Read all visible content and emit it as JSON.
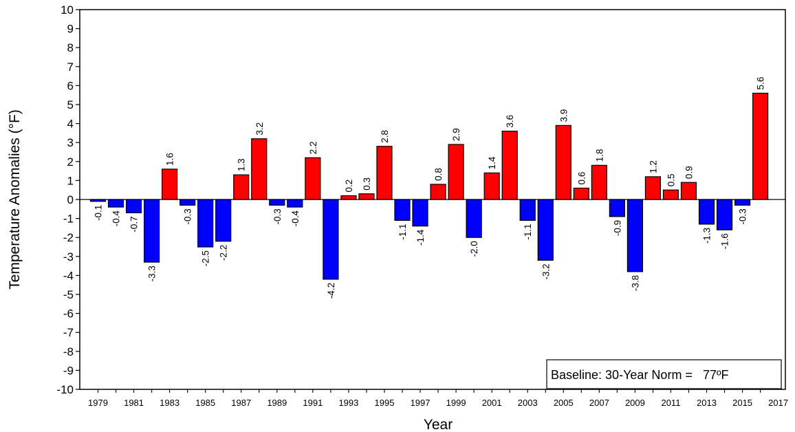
{
  "chart_data": {
    "type": "bar",
    "title": "",
    "xlabel": "Year",
    "ylabel": "Temperature Anomalies (°F)",
    "ylim": [
      -10,
      10
    ],
    "yticks": [
      "10",
      "9",
      "8",
      "7",
      "6",
      "5",
      "4",
      "3",
      "2",
      "1",
      "0",
      "-1",
      "-2",
      "-3",
      "-4",
      "-5",
      "-6",
      "-7",
      "-8",
      "-9",
      "-10"
    ],
    "xtick_labels": [
      "1979",
      "1981",
      "1983",
      "1985",
      "1987",
      "1989",
      "1991",
      "1993",
      "1995",
      "1997",
      "1999",
      "2001",
      "2003",
      "2005",
      "2007",
      "2009",
      "2011",
      "2013",
      "2015",
      "2017"
    ],
    "categories": [
      1979,
      1980,
      1981,
      1982,
      1983,
      1984,
      1985,
      1986,
      1987,
      1988,
      1989,
      1990,
      1991,
      1992,
      1993,
      1994,
      1995,
      1996,
      1997,
      1998,
      1999,
      2000,
      2001,
      2002,
      2003,
      2004,
      2005,
      2006,
      2007,
      2008,
      2009,
      2010,
      2011,
      2012,
      2013,
      2014,
      2015,
      2016
    ],
    "values": [
      -0.1,
      -0.4,
      -0.7,
      -3.3,
      1.6,
      -0.3,
      -2.5,
      -2.2,
      1.3,
      3.2,
      -0.3,
      -0.4,
      2.2,
      -4.2,
      0.2,
      0.3,
      2.8,
      -1.1,
      -1.4,
      0.8,
      2.9,
      -2.0,
      1.4,
      3.6,
      -1.1,
      -3.2,
      3.9,
      0.6,
      1.8,
      -0.9,
      -3.8,
      1.2,
      0.5,
      0.9,
      -1.3,
      -1.6,
      -0.3,
      5.6
    ],
    "value_labels": [
      "-0.1",
      "-0.4",
      "-0.7",
      "-3.3",
      "1.6",
      "-0.3",
      "-2.5",
      "-2.2",
      "1.3",
      "3.2",
      "-0.3",
      "-0.4",
      "2.2",
      "-4.2",
      "0.2",
      "0.3",
      "2.8",
      "-1.1",
      "-1.4",
      "0.8",
      "2.9",
      "-2.0",
      "1.4",
      "3.6",
      "-1.1",
      "-3.2",
      "3.9",
      "0.6",
      "1.8",
      "-0.9",
      "-3.8",
      "1.2",
      "0.5",
      "0.9",
      "-1.3",
      "-1.6",
      "-0.3",
      "5.6"
    ],
    "colors": {
      "positive": "#ff0000",
      "negative": "#0000ff",
      "outline": "#000000"
    },
    "grid": false,
    "annotation": {
      "text": "Baseline: 30-Year Norm =   77ºF",
      "placement": "bottom-right"
    }
  }
}
